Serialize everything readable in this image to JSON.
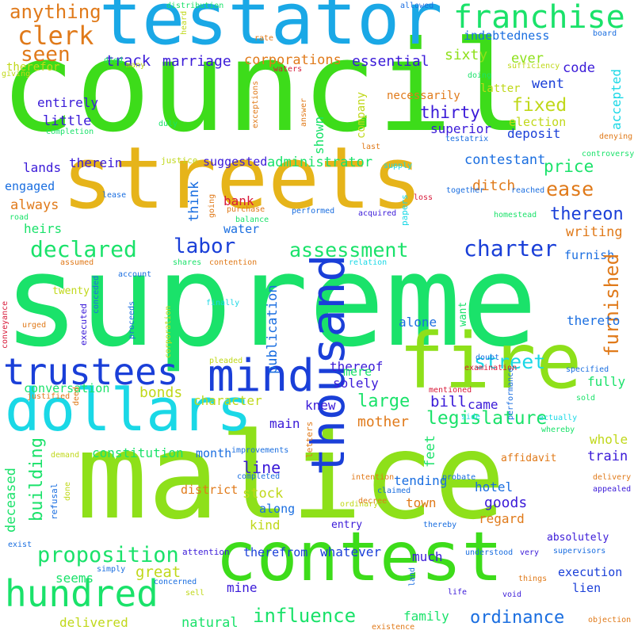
{
  "words": [
    {
      "text": "council",
      "color": "#3ddc1a"
    },
    {
      "text": "supreme",
      "color": "#1ae26a"
    },
    {
      "text": "malice",
      "color": "#8ee01a"
    },
    {
      "text": "streets",
      "color": "#e6b41a"
    },
    {
      "text": "testator",
      "color": "#1aa8e6"
    },
    {
      "text": "contest",
      "color": "#3ddc1a"
    },
    {
      "text": "fire",
      "color": "#8ee01a"
    },
    {
      "text": "dollars",
      "color": "#1ad8e6"
    },
    {
      "text": "hundred",
      "color": "#1ae26a"
    },
    {
      "text": "thousand",
      "color": "#1a3fd8"
    },
    {
      "text": "mind",
      "color": "#1a3fd8"
    },
    {
      "text": "trustees",
      "color": "#1a3fd8"
    },
    {
      "text": "franchise",
      "color": "#1ae26a"
    },
    {
      "text": "clerk",
      "color": "#e07a1a"
    },
    {
      "text": "seen",
      "color": "#e07a1a"
    },
    {
      "text": "anything",
      "color": "#e07a1a"
    },
    {
      "text": "track",
      "color": "#3a1ad8"
    },
    {
      "text": "marriage",
      "color": "#3a1ad8"
    },
    {
      "text": "corporations",
      "color": "#e07a1a"
    },
    {
      "text": "essential",
      "color": "#3a1ad8"
    },
    {
      "text": "sixty",
      "color": "#8ee01a"
    },
    {
      "text": "ever",
      "color": "#8ee01a"
    },
    {
      "text": "code",
      "color": "#3a1ad8"
    },
    {
      "text": "went",
      "color": "#1a3fd8"
    },
    {
      "text": "indebtedness",
      "color": "#1a6ee0"
    },
    {
      "text": "fixed",
      "color": "#c0d81a"
    },
    {
      "text": "election",
      "color": "#c0d81a"
    },
    {
      "text": "thirty",
      "color": "#3a1ad8"
    },
    {
      "text": "superior",
      "color": "#3a1ad8"
    },
    {
      "text": "deposit",
      "color": "#1a3fd8"
    },
    {
      "text": "entirely",
      "color": "#3a1ad8"
    },
    {
      "text": "little",
      "color": "#3a1ad8"
    },
    {
      "text": "shown",
      "color": "#1ae26a"
    },
    {
      "text": "therein",
      "color": "#3a1ad8"
    },
    {
      "text": "lands",
      "color": "#3a1ad8"
    },
    {
      "text": "engaged",
      "color": "#1a6ee0"
    },
    {
      "text": "suggested",
      "color": "#3a1ad8"
    },
    {
      "text": "administrator",
      "color": "#1ae26a"
    },
    {
      "text": "contestant",
      "color": "#1a6ee0"
    },
    {
      "text": "price",
      "color": "#1ae26a"
    },
    {
      "text": "ease",
      "color": "#e07a1a"
    },
    {
      "text": "ditch",
      "color": "#e07a1a"
    },
    {
      "text": "thereon",
      "color": "#1a3fd8"
    },
    {
      "text": "writing",
      "color": "#e07a1a"
    },
    {
      "text": "always",
      "color": "#e07a1a"
    },
    {
      "text": "heirs",
      "color": "#1ae26a"
    },
    {
      "text": "think",
      "color": "#1a6ee0"
    },
    {
      "text": "bank",
      "color": "#d81a3a"
    },
    {
      "text": "water",
      "color": "#1a6ee0"
    },
    {
      "text": "labor",
      "color": "#1a3fd8"
    },
    {
      "text": "declared",
      "color": "#1ae26a"
    },
    {
      "text": "assessment",
      "color": "#1ae26a"
    },
    {
      "text": "charter",
      "color": "#1a3fd8"
    },
    {
      "text": "furnish",
      "color": "#1a6ee0"
    },
    {
      "text": "furnished",
      "color": "#e07a1a"
    },
    {
      "text": "whole",
      "color": "#c0d81a"
    },
    {
      "text": "publication",
      "color": "#1a6ee0"
    },
    {
      "text": "street",
      "color": "#1ad8e6"
    },
    {
      "text": "thereto",
      "color": "#1a6ee0"
    },
    {
      "text": "fully",
      "color": "#1ae26a"
    },
    {
      "text": "came",
      "color": "#3a1ad8"
    },
    {
      "text": "bill",
      "color": "#3a1ad8"
    },
    {
      "text": "thereof",
      "color": "#3a1ad8"
    },
    {
      "text": "alone",
      "color": "#1a6ee0"
    },
    {
      "text": "large",
      "color": "#1ae26a"
    },
    {
      "text": "mere",
      "color": "#1ae26a"
    },
    {
      "text": "solely",
      "color": "#3a1ad8"
    },
    {
      "text": "conversation",
      "color": "#1ae26a"
    },
    {
      "text": "bonds",
      "color": "#c0d81a"
    },
    {
      "text": "character",
      "color": "#c0d81a"
    },
    {
      "text": "knew",
      "color": "#3a1ad8"
    },
    {
      "text": "mother",
      "color": "#e07a1a"
    },
    {
      "text": "main",
      "color": "#3a1ad8"
    },
    {
      "text": "legislature",
      "color": "#1ae26a"
    },
    {
      "text": "constitution",
      "color": "#1ae26a"
    },
    {
      "text": "month",
      "color": "#1a6ee0"
    },
    {
      "text": "train",
      "color": "#3a1ad8"
    },
    {
      "text": "line",
      "color": "#3a1ad8"
    },
    {
      "text": "stock",
      "color": "#c0d81a"
    },
    {
      "text": "kind",
      "color": "#c0d81a"
    },
    {
      "text": "along",
      "color": "#1a6ee0"
    },
    {
      "text": "building",
      "color": "#1ae26a"
    },
    {
      "text": "deceased",
      "color": "#1ae26a"
    },
    {
      "text": "district",
      "color": "#e07a1a"
    },
    {
      "text": "feet",
      "color": "#1ae26a"
    },
    {
      "text": "tending",
      "color": "#1a6ee0"
    },
    {
      "text": "town",
      "color": "#e07a1a"
    },
    {
      "text": "hotel",
      "color": "#1a6ee0"
    },
    {
      "text": "goods",
      "color": "#3a1ad8"
    },
    {
      "text": "regard",
      "color": "#e07a1a"
    },
    {
      "text": "proposition",
      "color": "#1ae26a"
    },
    {
      "text": "great",
      "color": "#c0d81a"
    },
    {
      "text": "seems",
      "color": "#1ae26a"
    },
    {
      "text": "therefrom",
      "color": "#1a3fd8"
    },
    {
      "text": "whatever",
      "color": "#1a3fd8"
    },
    {
      "text": "much",
      "color": "#3a1ad8"
    },
    {
      "text": "mine",
      "color": "#3a1ad8"
    },
    {
      "text": "influence",
      "color": "#1ae26a"
    },
    {
      "text": "ordinance",
      "color": "#1a6ee0"
    },
    {
      "text": "family",
      "color": "#1ae26a"
    },
    {
      "text": "delivered",
      "color": "#c0d81a"
    },
    {
      "text": "natural",
      "color": "#1ae26a"
    },
    {
      "text": "execution",
      "color": "#1a3fd8"
    },
    {
      "text": "lien",
      "color": "#1a3fd8"
    },
    {
      "text": "affidavit",
      "color": "#e07a1a"
    },
    {
      "text": "absolutely",
      "color": "#3a1ad8"
    },
    {
      "text": "accepted",
      "color": "#1ad8e6"
    },
    {
      "text": "necessarily",
      "color": "#e07a1a"
    },
    {
      "text": "latter",
      "color": "#c0d81a"
    },
    {
      "text": "company",
      "color": "#c0d81a"
    },
    {
      "text": "testatrix",
      "color": "#1a6ee0"
    },
    {
      "text": "denying",
      "color": "#e07a1a"
    },
    {
      "text": "board",
      "color": "#1a6ee0"
    },
    {
      "text": "sufficiency",
      "color": "#c0d81a"
    },
    {
      "text": "doing",
      "color": "#1ae26a"
    },
    {
      "text": "allowed",
      "color": "#1a6ee0"
    },
    {
      "text": "distribution",
      "color": "#1ae26a"
    },
    {
      "text": "heard",
      "color": "#c0d81a"
    },
    {
      "text": "rate",
      "color": "#e07a1a"
    },
    {
      "text": "died",
      "color": "#1ae26a"
    },
    {
      "text": "many",
      "color": "#c0d81a"
    },
    {
      "text": "waters",
      "color": "#d81a3a"
    },
    {
      "text": "giving",
      "color": "#c0d81a"
    },
    {
      "text": "therefor",
      "color": "#c0d81a"
    },
    {
      "text": "duly",
      "color": "#1ae26a"
    },
    {
      "text": "exceptions",
      "color": "#e07a1a"
    },
    {
      "text": "answer",
      "color": "#e07a1a"
    },
    {
      "text": "completion",
      "color": "#1ae26a"
    },
    {
      "text": "justice",
      "color": "#c0d81a"
    },
    {
      "text": "last",
      "color": "#e07a1a"
    },
    {
      "text": "supply",
      "color": "#1ad8e6"
    },
    {
      "text": "controversy",
      "color": "#1ae26a"
    },
    {
      "text": "reached",
      "color": "#1a6ee0"
    },
    {
      "text": "together",
      "color": "#1a6ee0"
    },
    {
      "text": "loss",
      "color": "#d81a3a"
    },
    {
      "text": "homestead",
      "color": "#1ae26a"
    },
    {
      "text": "lease",
      "color": "#1a6ee0"
    },
    {
      "text": "road",
      "color": "#1ae26a"
    },
    {
      "text": "going",
      "color": "#e07a1a"
    },
    {
      "text": "purchase",
      "color": "#e07a1a"
    },
    {
      "text": "balance",
      "color": "#1ae26a"
    },
    {
      "text": "performed",
      "color": "#1a6ee0"
    },
    {
      "text": "acquired",
      "color": "#3a1ad8"
    },
    {
      "text": "papers",
      "color": "#1ad8e6"
    },
    {
      "text": "relation",
      "color": "#1ad8e6"
    },
    {
      "text": "assumed",
      "color": "#e07a1a"
    },
    {
      "text": "shares",
      "color": "#1ae26a"
    },
    {
      "text": "contention",
      "color": "#e07a1a"
    },
    {
      "text": "account",
      "color": "#1a6ee0"
    },
    {
      "text": "twenty",
      "color": "#c0d81a"
    },
    {
      "text": "conceded",
      "color": "#1a6ee0"
    },
    {
      "text": "conveyance",
      "color": "#d81a3a"
    },
    {
      "text": "urged",
      "color": "#e07a1a"
    },
    {
      "text": "proceeds",
      "color": "#1a6ee0"
    },
    {
      "text": "corporation",
      "color": "#c0d81a"
    },
    {
      "text": "finally",
      "color": "#1ad8e6"
    },
    {
      "text": "executed",
      "color": "#3a1ad8"
    },
    {
      "text": "want",
      "color": "#1ae26a"
    },
    {
      "text": "pleaded",
      "color": "#c0d81a"
    },
    {
      "text": "doubt",
      "color": "#1a6ee0"
    },
    {
      "text": "examination",
      "color": "#d81a3a"
    },
    {
      "text": "specified",
      "color": "#1a6ee0"
    },
    {
      "text": "justified",
      "color": "#e07a1a"
    },
    {
      "text": "deed",
      "color": "#e07a1a"
    },
    {
      "text": "mentioned",
      "color": "#d81a3a"
    },
    {
      "text": "side",
      "color": "#1ad8e6"
    },
    {
      "text": "sold",
      "color": "#1ae26a"
    },
    {
      "text": "performance",
      "color": "#1a6ee0"
    },
    {
      "text": "actually",
      "color": "#1ad8e6"
    },
    {
      "text": "whereby",
      "color": "#1ae26a"
    },
    {
      "text": "delivery",
      "color": "#e07a1a"
    },
    {
      "text": "appealed",
      "color": "#3a1ad8"
    },
    {
      "text": "improvements",
      "color": "#1a6ee0"
    },
    {
      "text": "demand",
      "color": "#c0d81a"
    },
    {
      "text": "completed",
      "color": "#1a6ee0"
    },
    {
      "text": "letters",
      "color": "#e07a1a"
    },
    {
      "text": "intention",
      "color": "#e07a1a"
    },
    {
      "text": "probate",
      "color": "#1a6ee0"
    },
    {
      "text": "claimed",
      "color": "#1a6ee0"
    },
    {
      "text": "ordinary",
      "color": "#c0d81a"
    },
    {
      "text": "decree",
      "color": "#e07a1a"
    },
    {
      "text": "refusal",
      "color": "#1a6ee0"
    },
    {
      "text": "done",
      "color": "#c0d81a"
    },
    {
      "text": "entry",
      "color": "#3a1ad8"
    },
    {
      "text": "thereby",
      "color": "#1a6ee0"
    },
    {
      "text": "exist",
      "color": "#1a6ee0"
    },
    {
      "text": "attention",
      "color": "#3a1ad8"
    },
    {
      "text": "understood",
      "color": "#1a6ee0"
    },
    {
      "text": "very",
      "color": "#3a1ad8"
    },
    {
      "text": "supervisors",
      "color": "#1a6ee0"
    },
    {
      "text": "simply",
      "color": "#1a6ee0"
    },
    {
      "text": "concerned",
      "color": "#1a6ee0"
    },
    {
      "text": "sell",
      "color": "#c0d81a"
    },
    {
      "text": "land",
      "color": "#1a6ee0"
    },
    {
      "text": "life",
      "color": "#3a1ad8"
    },
    {
      "text": "things",
      "color": "#e07a1a"
    },
    {
      "text": "void",
      "color": "#3a1ad8"
    },
    {
      "text": "existence",
      "color": "#e07a1a"
    },
    {
      "text": "objection",
      "color": "#e07a1a"
    }
  ]
}
